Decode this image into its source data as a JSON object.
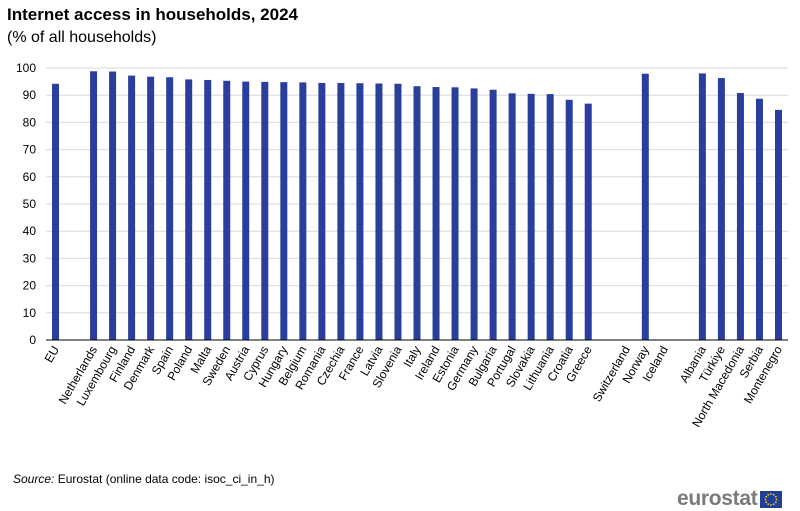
{
  "title": "Internet access in households, 2024",
  "subtitle": "(% of all households)",
  "source": {
    "label": "Source:",
    "text": " Eurostat (online data code: isoc_ci_in_h)"
  },
  "logo": {
    "text": "eurostat"
  },
  "colors": {
    "bar": "#2a3f9c",
    "grid": "#d9d9d9",
    "axis": "#000000"
  },
  "chart_data": {
    "type": "bar",
    "ylim": [
      0,
      100
    ],
    "yticks": [
      0,
      10,
      20,
      30,
      40,
      50,
      60,
      70,
      80,
      90,
      100
    ],
    "grid": true,
    "categories": [
      "EU",
      "",
      "Netherlands",
      "Luxembourg",
      "Finland",
      "Denmark",
      "Spain",
      "Poland",
      "Malta",
      "Sweden",
      "Austria",
      "Cyprus",
      "Hungary",
      "Belgium",
      "Romania",
      "Czechia",
      "France",
      "Latvia",
      "Slovenia",
      "Italy",
      "Ireland",
      "Estonia",
      "Germany",
      "Bulgaria",
      "Portugal",
      "Slovakia",
      "Lithuania",
      "Croatia",
      "Greece",
      "",
      "Switzerland",
      "Norway",
      "Iceland",
      "",
      "Albania",
      "Türkiye",
      "North Macedonia",
      "Serbia",
      "Montenegro"
    ],
    "values": [
      94.2,
      null,
      98.8,
      98.7,
      97.2,
      96.8,
      96.6,
      95.8,
      95.6,
      95.3,
      95.0,
      94.9,
      94.8,
      94.7,
      94.5,
      94.5,
      94.4,
      94.3,
      94.2,
      93.3,
      93.0,
      92.9,
      92.5,
      92.0,
      90.7,
      90.5,
      90.4,
      88.3,
      86.9,
      null,
      null,
      97.9,
      null,
      null,
      98.0,
      96.3,
      90.8,
      88.7,
      84.6
    ]
  }
}
